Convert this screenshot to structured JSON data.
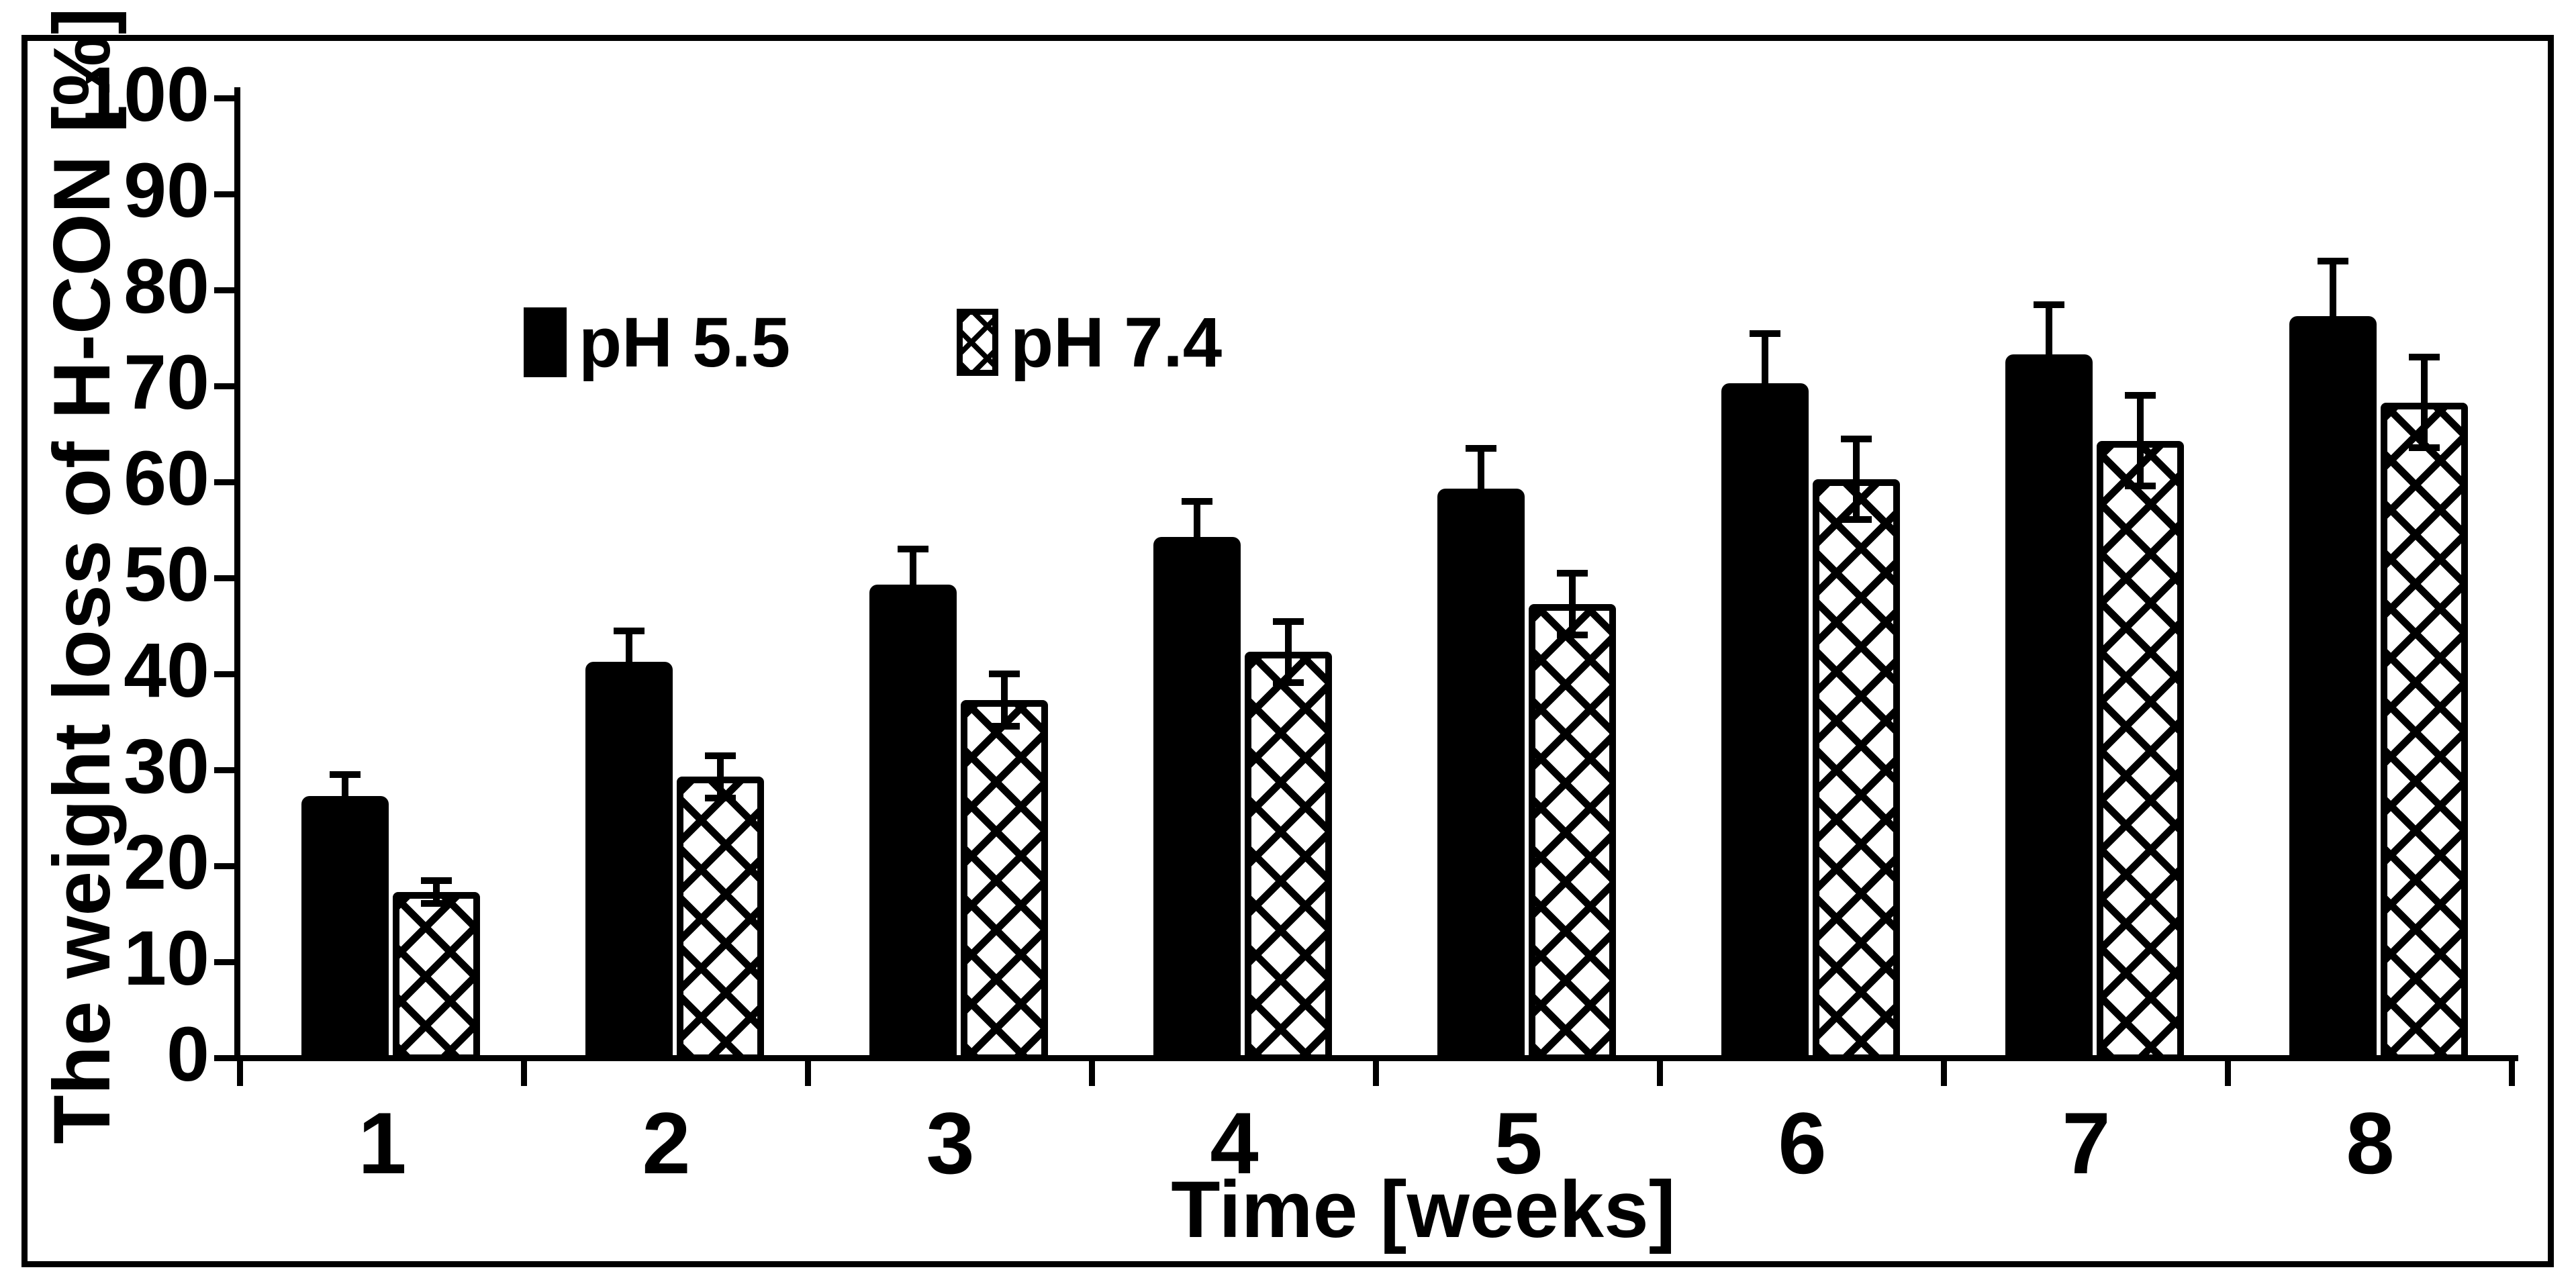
{
  "figure": {
    "background_color": "#ffffff",
    "frame_color": "#000000"
  },
  "legend": {
    "items": [
      {
        "label": "pH 5.5",
        "swatch": "solid-black"
      },
      {
        "label": "pH 7.4",
        "swatch": "diagonal-crosshatch"
      }
    ]
  },
  "chart_data": {
    "type": "bar",
    "title": "",
    "xlabel": "Time [weeks]",
    "ylabel": "The weight loss of H-CON [%]",
    "categories": [
      "1",
      "2",
      "3",
      "4",
      "5",
      "6",
      "7",
      "8"
    ],
    "series": [
      {
        "name": "pH 5.5",
        "style": "solid-black",
        "values": [
          27,
          41,
          49,
          54,
          59,
          70,
          73,
          77
        ],
        "errors": [
          2,
          3,
          3.5,
          3.5,
          4,
          5,
          5,
          5.5
        ]
      },
      {
        "name": "pH 7.4",
        "style": "diagonal-crosshatch",
        "values": [
          17,
          29,
          37,
          42,
          47,
          60,
          64,
          68
        ],
        "errors": [
          1,
          2,
          2.5,
          3,
          3,
          4,
          4.5,
          4.5
        ]
      }
    ],
    "ylim": [
      0,
      100
    ],
    "ytick_step": 10,
    "grid": false,
    "error_bars": true,
    "legend_position": "inside-top-left",
    "colors": {
      "foreground": "#000000",
      "background": "#ffffff"
    }
  }
}
